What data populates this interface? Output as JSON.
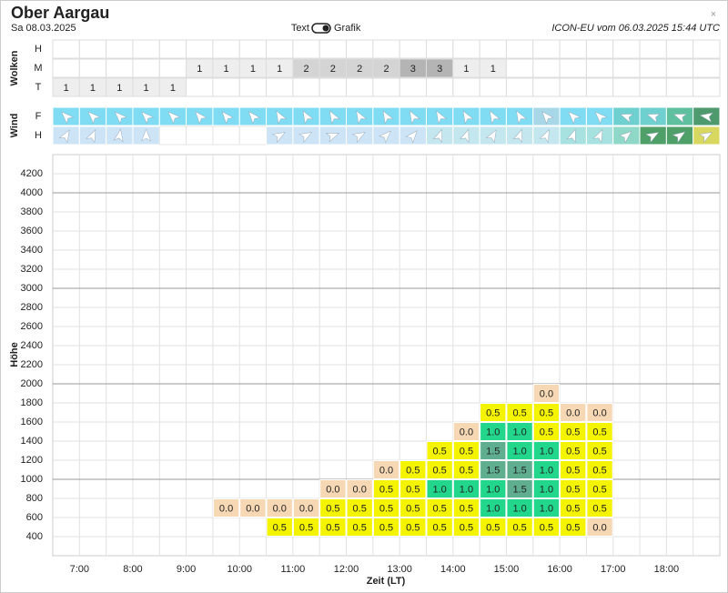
{
  "header": {
    "title": "Ober Aargau",
    "date": "Sa 08.03.2025",
    "toggle_left": "Text",
    "toggle_right": "Grafik",
    "model": "ICON-EU vom 06.03.2025 15:44 UTC",
    "close": "×"
  },
  "clouds": {
    "label": "Wolken",
    "rows": [
      {
        "name": "H",
        "values": [
          null,
          null,
          null,
          null,
          null,
          null,
          null,
          null,
          null,
          null,
          null,
          null,
          null,
          null,
          null,
          null,
          null,
          null,
          null,
          null,
          null,
          null,
          null,
          null,
          null
        ]
      },
      {
        "name": "M",
        "values": [
          null,
          null,
          null,
          null,
          null,
          1,
          1,
          1,
          1,
          2,
          2,
          2,
          2,
          3,
          3,
          1,
          1,
          null,
          null,
          null,
          null,
          null,
          null,
          null,
          null
        ]
      },
      {
        "name": "T",
        "values": [
          1,
          1,
          1,
          1,
          1,
          null,
          null,
          null,
          null,
          null,
          null,
          null,
          null,
          null,
          null,
          null,
          null,
          null,
          null,
          null,
          null,
          null,
          null,
          null,
          null
        ]
      }
    ],
    "colors": {
      "1": "#eeeeee",
      "2": "#d4d4d4",
      "3": "#b4b4b4"
    }
  },
  "wind": {
    "label": "Wind",
    "rows": [
      {
        "name": "F",
        "directions": [
          315,
          315,
          315,
          315,
          315,
          320,
          320,
          320,
          330,
          330,
          330,
          330,
          330,
          330,
          330,
          330,
          330,
          330,
          320,
          315,
          315,
          290,
          290,
          290,
          280
        ],
        "colors": [
          "#80dcf2",
          "#80dcf2",
          "#80dcf2",
          "#80dcf2",
          "#80dcf2",
          "#80dcf2",
          "#80dcf2",
          "#80dcf2",
          "#80dcf2",
          "#80dcf2",
          "#80dcf2",
          "#80dcf2",
          "#80dcf2",
          "#80dcf2",
          "#80dcf2",
          "#80dcf2",
          "#80dcf2",
          "#80dcf2",
          "#a8d8e8",
          "#80dcf2",
          "#80dcf2",
          "#6fd0d0",
          "#6fd0d0",
          "#5fc0a0",
          "#4e9a6e"
        ]
      },
      {
        "name": "H",
        "directions": [
          30,
          25,
          10,
          0,
          null,
          null,
          null,
          null,
          60,
          60,
          70,
          60,
          45,
          40,
          20,
          20,
          30,
          20,
          25,
          20,
          25,
          50,
          60,
          55,
          60
        ],
        "colors": [
          "#cde4f6",
          "#cde4f6",
          "#cde4f6",
          "#cde4f6",
          null,
          null,
          null,
          null,
          "#cde4f6",
          "#cde4f6",
          "#cde4f6",
          "#cde4f6",
          "#cde4f6",
          "#cde4f6",
          "#c4e6ee",
          "#c4e6ee",
          "#c4e6ee",
          "#c4e6ee",
          "#c4e6ee",
          "#a8e2e0",
          "#a8e2e0",
          "#8fd8c8",
          "#4f9f68",
          "#4f9f68",
          "#d8d860"
        ]
      }
    ]
  },
  "chart": {
    "y_label": "Höhe",
    "x_label": "Zeit (LT)",
    "ylim": [
      200,
      4400
    ],
    "yticks": [
      400,
      600,
      800,
      1000,
      1200,
      1400,
      1600,
      1800,
      2000,
      2200,
      2400,
      2600,
      2800,
      3000,
      3200,
      3400,
      3600,
      3800,
      4000,
      4200
    ],
    "major_ticks": [
      1000,
      2000,
      3000,
      4000
    ],
    "times": [
      "7:00",
      "8:00",
      "9:00",
      "10:00",
      "11:00",
      "12:00",
      "13:00",
      "14:00",
      "15:00",
      "16:00",
      "17:00",
      "18:00"
    ],
    "colors": {
      "0.0": "#f6d8b4",
      "0.5": "#f4f400",
      "1.0": "#22d68c",
      "1.5": "#5fae90"
    },
    "rows": [
      {
        "base": 400,
        "cells": [
          null,
          null,
          null,
          null,
          null,
          null,
          null,
          null,
          "0.5",
          "0.5",
          "0.5",
          "0.5",
          "0.5",
          "0.5",
          "0.5",
          "0.5",
          "0.5",
          "0.5",
          "0.5",
          "0.5",
          "0.0",
          null,
          null,
          null,
          null
        ]
      },
      {
        "base": 600,
        "cells": [
          null,
          null,
          null,
          null,
          null,
          null,
          "0.0",
          "0.0",
          "0.0",
          "0.0",
          "0.5",
          "0.5",
          "0.5",
          "0.5",
          "0.5",
          "0.5",
          "1.0",
          "1.0",
          "1.0",
          "0.5",
          "0.5",
          null,
          null,
          null,
          null
        ]
      },
      {
        "base": 800,
        "cells": [
          null,
          null,
          null,
          null,
          null,
          null,
          null,
          null,
          null,
          null,
          "0.0",
          "0.0",
          "0.5",
          "0.5",
          "1.0",
          "1.0",
          "1.0",
          "1.5",
          "1.0",
          "0.5",
          "0.5",
          null,
          null,
          null,
          null
        ]
      },
      {
        "base": 1000,
        "cells": [
          null,
          null,
          null,
          null,
          null,
          null,
          null,
          null,
          null,
          null,
          null,
          null,
          "0.0",
          "0.5",
          "0.5",
          "0.5",
          "1.5",
          "1.5",
          "1.0",
          "0.5",
          "0.5",
          null,
          null,
          null,
          null
        ]
      },
      {
        "base": 1200,
        "cells": [
          null,
          null,
          null,
          null,
          null,
          null,
          null,
          null,
          null,
          null,
          null,
          null,
          null,
          null,
          "0.5",
          "0.5",
          "1.5",
          "1.0",
          "1.0",
          "0.5",
          "0.5",
          null,
          null,
          null,
          null
        ]
      },
      {
        "base": 1400,
        "cells": [
          null,
          null,
          null,
          null,
          null,
          null,
          null,
          null,
          null,
          null,
          null,
          null,
          null,
          null,
          null,
          "0.0",
          "1.0",
          "1.0",
          "0.5",
          "0.5",
          "0.5",
          null,
          null,
          null,
          null
        ]
      },
      {
        "base": 1600,
        "cells": [
          null,
          null,
          null,
          null,
          null,
          null,
          null,
          null,
          null,
          null,
          null,
          null,
          null,
          null,
          null,
          null,
          "0.5",
          "0.5",
          "0.5",
          "0.0",
          "0.0",
          null,
          null,
          null,
          null
        ]
      },
      {
        "base": 1800,
        "cells": [
          null,
          null,
          null,
          null,
          null,
          null,
          null,
          null,
          null,
          null,
          null,
          null,
          null,
          null,
          null,
          null,
          null,
          null,
          "0.0",
          null,
          null,
          null,
          null,
          null,
          null
        ]
      }
    ]
  }
}
